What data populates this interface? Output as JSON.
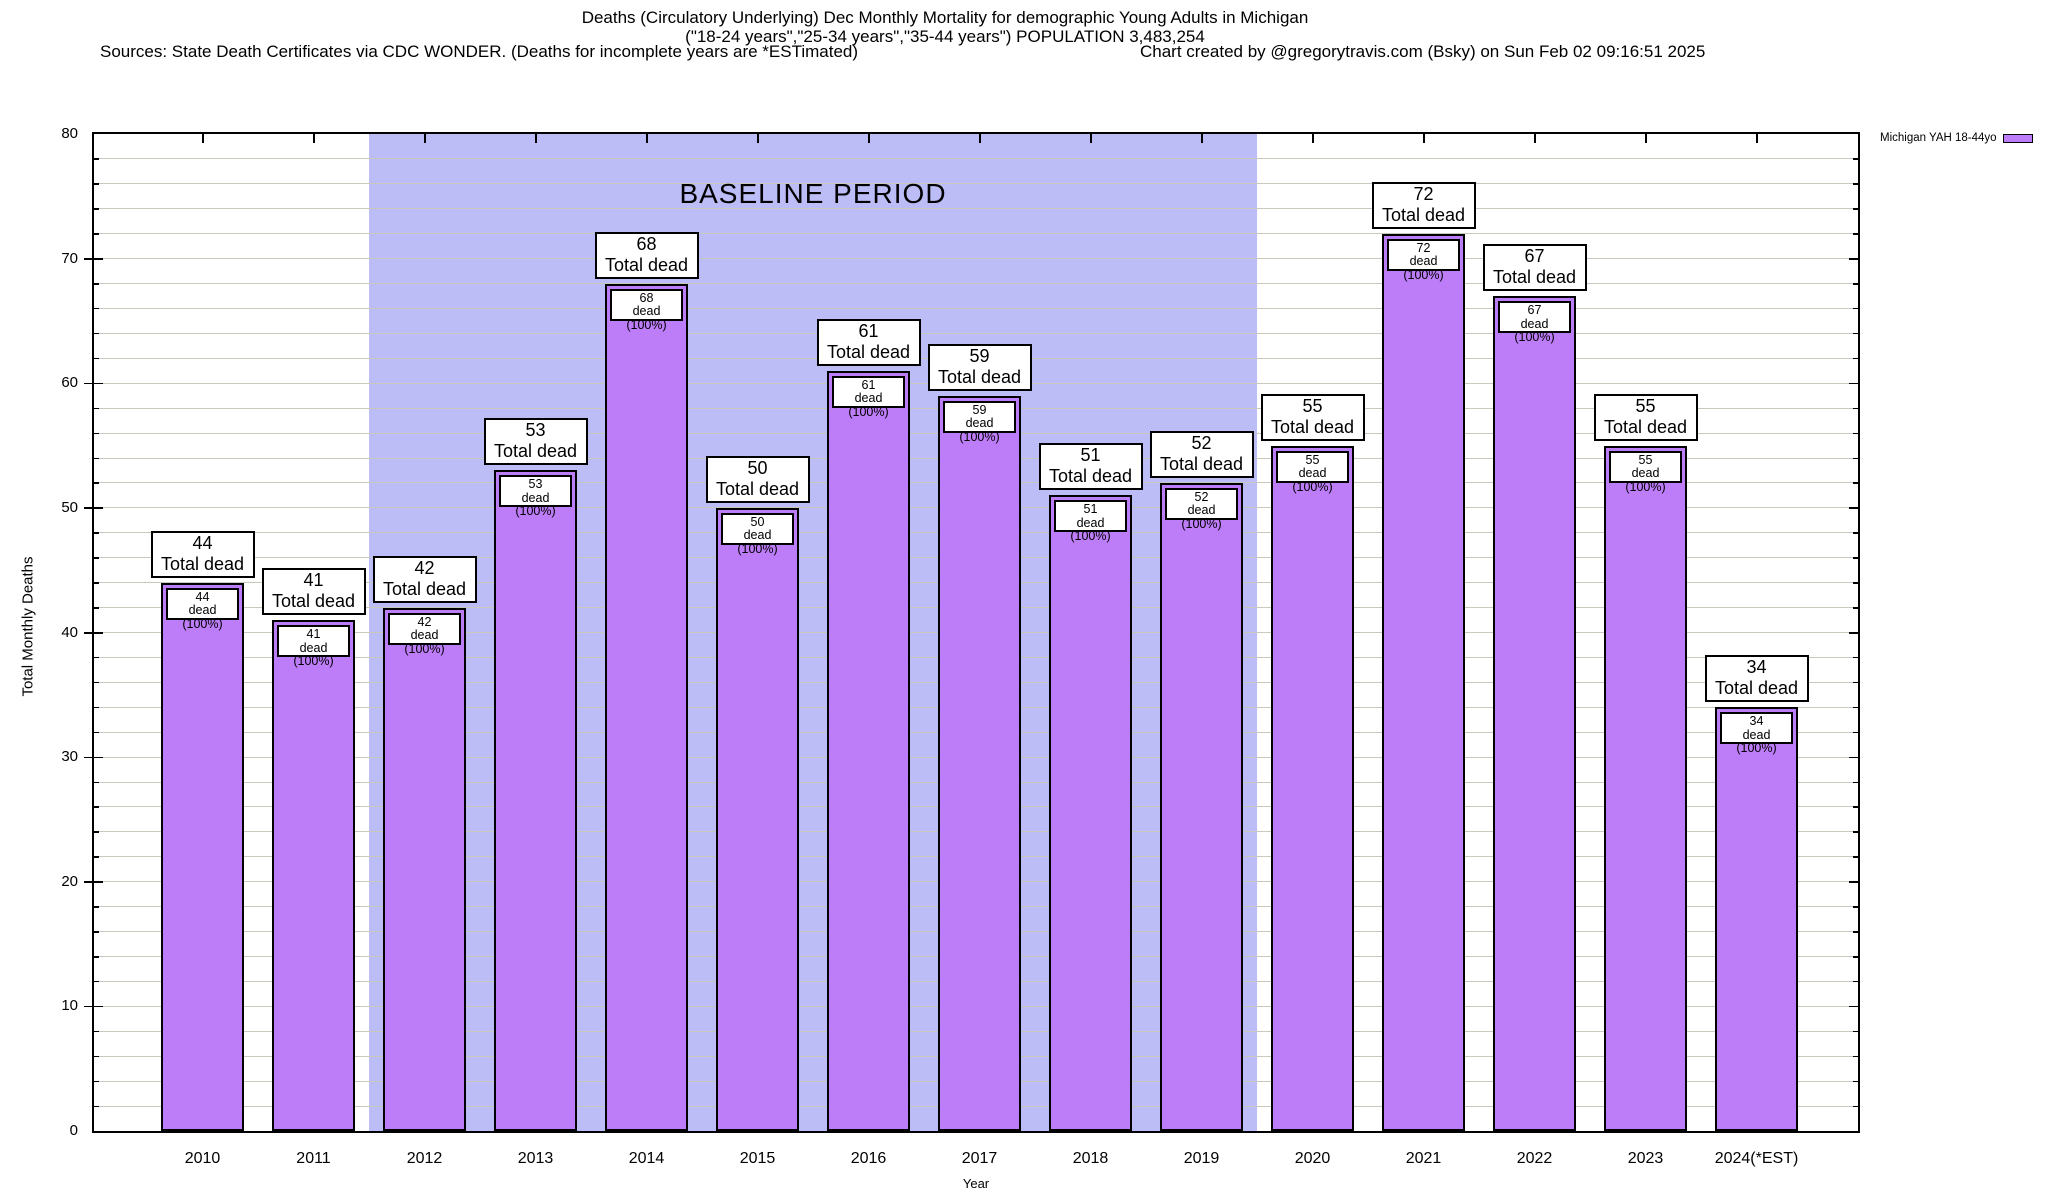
{
  "title": {
    "line1": "Deaths (Circulatory Underlying) Dec Monthly Mortality for demographic Young Adults in Michigan",
    "line2": "(\"18-24 years\",\"25-34 years\",\"35-44 years\") POPULATION 3,483,254",
    "line3_left": "Sources: State Death Certificates via CDC WONDER. (Deaths for incomplete years are *ESTimated)",
    "line3_right": "Chart created by @gregorytravis.com (Bsky) on Sun Feb 02 09:16:51 2025"
  },
  "axes": {
    "ylabel": "Total Monthly Deaths",
    "xlabel": "Year",
    "yticks": [
      0,
      10,
      20,
      30,
      40,
      50,
      60,
      70,
      80
    ]
  },
  "annotations": {
    "baseline": "BASELINE PERIOD"
  },
  "legend": {
    "label": "Michigan YAH 18-44yo",
    "swatch_color": "#bd7cf8"
  },
  "chart_data": {
    "type": "bar",
    "title": "Deaths (Circulatory Underlying) Dec Monthly Mortality for demographic Young Adults in Michigan",
    "subtitle": "(\"18-24 years\",\"25-34 years\",\"35-44 years\") POPULATION 3,483,254",
    "categories": [
      "2010",
      "2011",
      "2012",
      "2013",
      "2014",
      "2015",
      "2016",
      "2017",
      "2018",
      "2019",
      "2020",
      "2021",
      "2022",
      "2023",
      "2024(*EST)"
    ],
    "series": [
      {
        "name": "Michigan YAH 18-44yo",
        "values": [
          44,
          41,
          42,
          53,
          68,
          50,
          61,
          59,
          51,
          52,
          55,
          72,
          67,
          55,
          34
        ]
      }
    ],
    "bar_top_label_suffix": "Total dead",
    "bar_inner_label_suffix": "dead (100%)",
    "xlabel": "Year",
    "ylabel": "Total Monthly Deaths",
    "ylim": [
      0,
      80
    ],
    "grid_step": 2,
    "grid": true,
    "legend_position": "top-right",
    "baseline_period": {
      "label": "BASELINE PERIOD",
      "from_category": "2012",
      "to_category": "2019"
    },
    "colors": {
      "bar": "#bd7cf8",
      "baseline_bg": "#bcbcf6",
      "grid": "#c8c8bc"
    }
  }
}
